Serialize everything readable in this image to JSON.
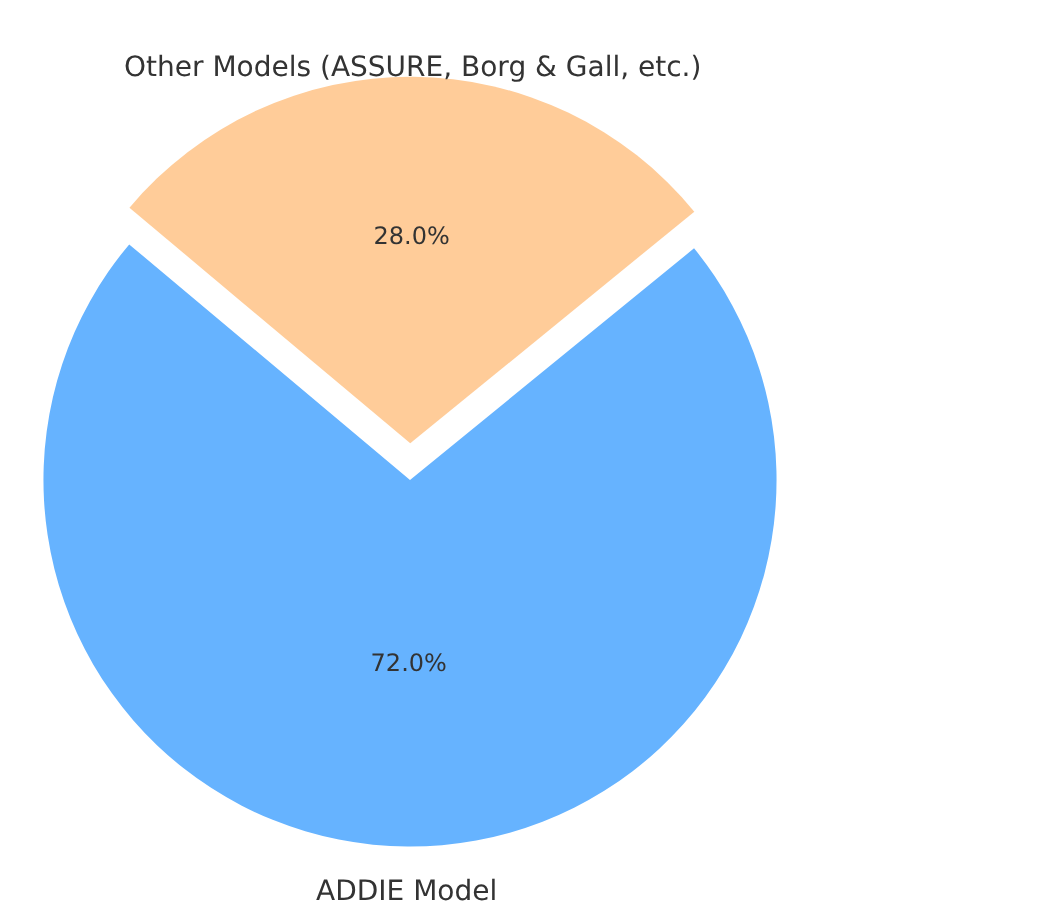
{
  "chart_data": {
    "type": "pie",
    "categories": [
      "ADDIE Model",
      "Other Models (ASSURE, Borg & Gall, etc.)"
    ],
    "values": [
      72,
      28
    ],
    "value_labels": [
      "72.0%",
      "28.0%"
    ],
    "colors": [
      "#66b3ff",
      "#ffcc99"
    ],
    "legend": false
  }
}
